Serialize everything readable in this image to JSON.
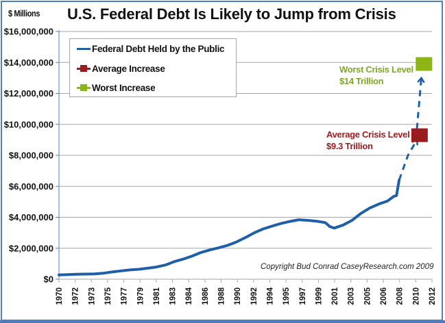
{
  "chart_data": {
    "type": "line",
    "title": "U.S. Federal Debt Is Likely to Jump from Crisis",
    "ylabel": "$ Millions",
    "xlabel": "",
    "xlim": [
      1970,
      2012
    ],
    "ylim": [
      0,
      16000000
    ],
    "y_ticks": [
      {
        "value": 0,
        "label": "$0"
      },
      {
        "value": 2000000,
        "label": "$2,000,000"
      },
      {
        "value": 4000000,
        "label": "$4,000,000"
      },
      {
        "value": 6000000,
        "label": "$6,000,000"
      },
      {
        "value": 8000000,
        "label": "$8,000,000"
      },
      {
        "value": 10000000,
        "label": "$10,000,000"
      },
      {
        "value": 12000000,
        "label": "$12,000,000"
      },
      {
        "value": 14000000,
        "label": "$14,000,000"
      },
      {
        "value": 16000000,
        "label": "$16,000,000"
      }
    ],
    "x_tick_labels": [
      "1970",
      "1972",
      "1973",
      "1975",
      "1977",
      "1979",
      "1981",
      "1983",
      "1984",
      "1986",
      "1988",
      "1990",
      "1992",
      "1994",
      "1995",
      "1997",
      "1999",
      "2001",
      "2003",
      "2005",
      "2006",
      "2008",
      "2010",
      "2012"
    ],
    "grid": true,
    "legend_position": "top-left",
    "series": [
      {
        "name": "Federal Debt Held by the Public",
        "color": "#1f5fa8",
        "style": "solid",
        "x": [
          1970,
          1971,
          1972,
          1973,
          1974,
          1975,
          1976,
          1977,
          1978,
          1979,
          1980,
          1981,
          1982,
          1983,
          1984,
          1985,
          1986,
          1987,
          1988,
          1989,
          1990,
          1991,
          1992,
          1993,
          1994,
          1995,
          1996,
          1997,
          1998,
          1999,
          2000,
          2000.5,
          2001,
          2002,
          2003,
          2004,
          2005,
          2006,
          2007,
          2007.7,
          2008,
          2008.3
        ],
        "values": [
          280000,
          300000,
          320000,
          330000,
          340000,
          390000,
          470000,
          540000,
          600000,
          640000,
          710000,
          790000,
          920000,
          1140000,
          1300000,
          1500000,
          1730000,
          1890000,
          2030000,
          2190000,
          2410000,
          2690000,
          3000000,
          3250000,
          3430000,
          3600000,
          3730000,
          3840000,
          3800000,
          3750000,
          3650000,
          3400000,
          3300000,
          3500000,
          3800000,
          4250000,
          4600000,
          4850000,
          5050000,
          5350000,
          5400000,
          6400000
        ]
      },
      {
        "name": "Projection (dashed)",
        "color": "#1f5fa8",
        "style": "dashed",
        "x": [
          2008.3,
          2009.3,
          2010.3
        ],
        "values": [
          6400000,
          8000000,
          9000000
        ]
      },
      {
        "name": "Projection to worst (dashed)",
        "color": "#1f5fa8",
        "style": "dashed",
        "x": [
          2010.3,
          2010.8
        ],
        "values": [
          9700000,
          13000000
        ]
      },
      {
        "name": "Average Increase",
        "color": "#9b1c1f",
        "type": "marker",
        "x": [
          2010.6
        ],
        "values": [
          9300000
        ]
      },
      {
        "name": "Worst Increase",
        "color": "#8db515",
        "type": "marker",
        "x": [
          2011.1
        ],
        "values": [
          13900000
        ]
      }
    ],
    "legend": [
      {
        "label": "Federal Debt Held by the Public",
        "color": "#1f5fa8",
        "kind": "line"
      },
      {
        "label": "Average Increase",
        "color": "#9b1c1f",
        "kind": "marker"
      },
      {
        "label": "Worst Increase",
        "color": "#8db515",
        "kind": "marker"
      }
    ],
    "annotations": [
      {
        "line1": "Worst  Crisis Level",
        "line2": "$14 Trillion",
        "color": "#7ea628"
      },
      {
        "line1": "Average Crisis Level",
        "line2": "$9.3 Trillion",
        "color": "#9b1c1f"
      },
      {
        "text": "Copyright Bud Conrad  CaseyResearch.com 2009",
        "color": "#222222"
      }
    ]
  },
  "colors": {
    "frame": "#4f81bd",
    "gridline": "#a6a6a6",
    "axis": "#4f81bd"
  }
}
